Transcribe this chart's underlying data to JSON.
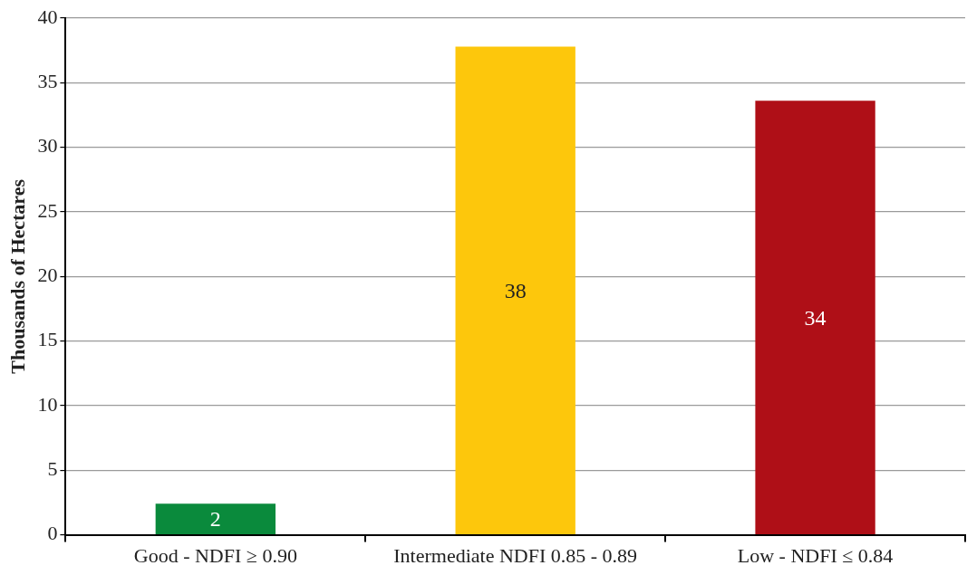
{
  "chart_data": {
    "type": "bar",
    "ylabel": "Thousands of Hectares",
    "categories": [
      "Good - NDFI ≥ 0.90",
      "Intermediate NDFI 0.85 - 0.89",
      "Low - NDFI ≤ 0.84"
    ],
    "values": [
      2.4,
      37.8,
      33.6
    ],
    "colors": [
      "#0a8a3c",
      "#fdc70c",
      "#af0f17"
    ],
    "value_labels": [
      "2",
      "38",
      "34"
    ],
    "ylim": [
      0,
      40
    ],
    "yticks": [
      0,
      5,
      10,
      15,
      20,
      25,
      30,
      35,
      40
    ],
    "grid": "y",
    "legend": false
  }
}
